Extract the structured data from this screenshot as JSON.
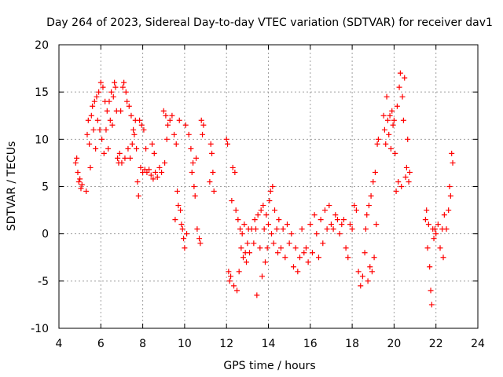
{
  "chart_data": {
    "type": "scatter",
    "title": "Day 264 of 2023, Sidereal Day-to-day VTEC variation (SDTVAR) for receiver dav1",
    "xlabel": "GPS time / hours",
    "ylabel": "SDTVAR / TECUs",
    "xlim": [
      4,
      24
    ],
    "ylim": [
      -10,
      20
    ],
    "xticks": [
      4,
      6,
      8,
      10,
      12,
      14,
      16,
      18,
      20,
      22,
      24
    ],
    "yticks": [
      -10,
      -5,
      0,
      5,
      10,
      15,
      20
    ],
    "xtick_labels": [
      "4",
      "6",
      "8",
      "10",
      "12",
      "14",
      "16",
      "18",
      "20",
      "22",
      "24"
    ],
    "ytick_labels": [
      "-10",
      "-5",
      "0",
      "5",
      "10",
      "15",
      "20"
    ],
    "grid": true,
    "legend": "none",
    "marker": "+",
    "color": "#ff0000",
    "series": [
      {
        "name": "dav1",
        "points": [
          [
            4.8,
            7.5
          ],
          [
            4.85,
            8.0
          ],
          [
            4.9,
            6.5
          ],
          [
            4.95,
            5.5
          ],
          [
            5.0,
            5.8
          ],
          [
            5.05,
            4.8
          ],
          [
            5.1,
            5.2
          ],
          [
            5.3,
            4.5
          ],
          [
            5.35,
            10.5
          ],
          [
            5.4,
            12.0
          ],
          [
            5.45,
            9.5
          ],
          [
            5.5,
            7.0
          ],
          [
            5.55,
            12.5
          ],
          [
            5.6,
            13.5
          ],
          [
            5.65,
            11.0
          ],
          [
            5.7,
            14.0
          ],
          [
            5.75,
            9.0
          ],
          [
            5.8,
            14.5
          ],
          [
            5.85,
            12.0
          ],
          [
            5.9,
            15.0
          ],
          [
            5.95,
            11.0
          ],
          [
            6.0,
            16.0
          ],
          [
            6.05,
            10.0
          ],
          [
            6.1,
            15.5
          ],
          [
            6.15,
            8.5
          ],
          [
            6.2,
            14.0
          ],
          [
            6.25,
            11.0
          ],
          [
            6.3,
            13.0
          ],
          [
            6.35,
            9.0
          ],
          [
            6.4,
            14.0
          ],
          [
            6.45,
            12.0
          ],
          [
            6.5,
            15.0
          ],
          [
            6.55,
            11.5
          ],
          [
            6.6,
            14.5
          ],
          [
            6.65,
            16.0
          ],
          [
            6.7,
            15.5
          ],
          [
            6.75,
            13.0
          ],
          [
            6.8,
            8.0
          ],
          [
            6.85,
            7.5
          ],
          [
            6.9,
            8.5
          ],
          [
            6.95,
            13.0
          ],
          [
            7.0,
            7.5
          ],
          [
            7.05,
            15.5
          ],
          [
            7.1,
            16.0
          ],
          [
            7.15,
            8.0
          ],
          [
            7.2,
            15.0
          ],
          [
            7.25,
            14.0
          ],
          [
            7.3,
            9.0
          ],
          [
            7.35,
            13.5
          ],
          [
            7.4,
            8.0
          ],
          [
            7.45,
            12.5
          ],
          [
            7.5,
            9.5
          ],
          [
            7.55,
            11.0
          ],
          [
            7.6,
            10.5
          ],
          [
            7.65,
            12.0
          ],
          [
            7.7,
            9.0
          ],
          [
            7.75,
            5.5
          ],
          [
            7.8,
            4.0
          ],
          [
            7.85,
            12.0
          ],
          [
            7.9,
            7.0
          ],
          [
            7.95,
            11.5
          ],
          [
            8.0,
            6.5
          ],
          [
            8.05,
            11.0
          ],
          [
            8.1,
            6.8
          ],
          [
            8.15,
            9.0
          ],
          [
            8.2,
            6.5
          ],
          [
            8.3,
            6.8
          ],
          [
            8.4,
            6.2
          ],
          [
            8.45,
            9.5
          ],
          [
            8.5,
            5.8
          ],
          [
            8.55,
            8.5
          ],
          [
            8.6,
            6.5
          ],
          [
            8.7,
            6.0
          ],
          [
            8.8,
            7.0
          ],
          [
            8.9,
            6.5
          ],
          [
            9.0,
            13.0
          ],
          [
            9.05,
            7.5
          ],
          [
            9.1,
            12.5
          ],
          [
            9.15,
            10.0
          ],
          [
            9.2,
            11.5
          ],
          [
            9.3,
            12.0
          ],
          [
            9.4,
            12.5
          ],
          [
            9.5,
            10.5
          ],
          [
            9.55,
            1.5
          ],
          [
            9.6,
            9.5
          ],
          [
            9.65,
            4.5
          ],
          [
            9.7,
            3.0
          ],
          [
            9.75,
            12.0
          ],
          [
            9.8,
            2.5
          ],
          [
            9.85,
            1.0
          ],
          [
            9.9,
            0.5
          ],
          [
            9.95,
            -0.5
          ],
          [
            10.0,
            -1.5
          ],
          [
            10.05,
            11.5
          ],
          [
            10.1,
            0.0
          ],
          [
            10.2,
            10.5
          ],
          [
            10.3,
            9.0
          ],
          [
            10.35,
            6.5
          ],
          [
            10.4,
            7.5
          ],
          [
            10.45,
            5.0
          ],
          [
            10.5,
            4.0
          ],
          [
            10.55,
            8.0
          ],
          [
            10.6,
            0.5
          ],
          [
            10.7,
            -0.5
          ],
          [
            10.75,
            -1.0
          ],
          [
            10.8,
            12.0
          ],
          [
            10.85,
            10.5
          ],
          [
            10.9,
            11.5
          ],
          [
            11.2,
            5.5
          ],
          [
            11.25,
            9.5
          ],
          [
            11.3,
            8.5
          ],
          [
            11.35,
            6.5
          ],
          [
            11.4,
            4.5
          ],
          [
            12.0,
            10.0
          ],
          [
            12.05,
            9.5
          ],
          [
            12.1,
            -4.0
          ],
          [
            12.15,
            -5.0
          ],
          [
            12.2,
            -4.5
          ],
          [
            12.25,
            3.5
          ],
          [
            12.3,
            7.0
          ],
          [
            12.35,
            -5.5
          ],
          [
            12.4,
            6.5
          ],
          [
            12.45,
            2.5
          ],
          [
            12.5,
            -6.0
          ],
          [
            12.55,
            1.5
          ],
          [
            12.6,
            -4.0
          ],
          [
            12.65,
            0.5
          ],
          [
            12.7,
            -1.5
          ],
          [
            12.75,
            0.0
          ],
          [
            12.8,
            -2.5
          ],
          [
            12.85,
            1.0
          ],
          [
            12.9,
            -2.0
          ],
          [
            12.95,
            -3.0
          ],
          [
            13.0,
            -1.0
          ],
          [
            13.05,
            0.5
          ],
          [
            13.1,
            -2.0
          ],
          [
            13.2,
            0.5
          ],
          [
            13.3,
            -1.0
          ],
          [
            13.35,
            1.5
          ],
          [
            13.4,
            0.5
          ],
          [
            13.45,
            -6.5
          ],
          [
            13.5,
            2.0
          ],
          [
            13.6,
            -1.5
          ],
          [
            13.65,
            2.5
          ],
          [
            13.7,
            -4.5
          ],
          [
            13.75,
            3.0
          ],
          [
            13.8,
            0.5
          ],
          [
            13.85,
            -3.0
          ],
          [
            13.9,
            2.0
          ],
          [
            13.95,
            -1.5
          ],
          [
            14.0,
            1.0
          ],
          [
            14.05,
            3.5
          ],
          [
            14.1,
            4.5
          ],
          [
            14.15,
            0.0
          ],
          [
            14.2,
            5.0
          ],
          [
            14.25,
            -1.0
          ],
          [
            14.3,
            2.5
          ],
          [
            14.4,
            0.5
          ],
          [
            14.45,
            -2.0
          ],
          [
            14.5,
            1.5
          ],
          [
            14.6,
            -1.5
          ],
          [
            14.7,
            0.5
          ],
          [
            14.8,
            -2.5
          ],
          [
            14.9,
            1.0
          ],
          [
            15.0,
            -1.0
          ],
          [
            15.1,
            0.0
          ],
          [
            15.2,
            -3.5
          ],
          [
            15.3,
            -1.5
          ],
          [
            15.4,
            -4.0
          ],
          [
            15.5,
            -2.5
          ],
          [
            15.6,
            0.5
          ],
          [
            15.7,
            -2.0
          ],
          [
            15.8,
            -1.5
          ],
          [
            15.9,
            -3.0
          ],
          [
            16.0,
            1.0
          ],
          [
            16.1,
            -2.0
          ],
          [
            16.2,
            2.0
          ],
          [
            16.3,
            0.0
          ],
          [
            16.4,
            -2.5
          ],
          [
            16.5,
            1.5
          ],
          [
            16.6,
            -1.0
          ],
          [
            16.7,
            2.5
          ],
          [
            16.8,
            0.5
          ],
          [
            16.9,
            3.0
          ],
          [
            17.0,
            1.0
          ],
          [
            17.1,
            0.5
          ],
          [
            17.2,
            2.0
          ],
          [
            17.3,
            1.5
          ],
          [
            17.4,
            0.0
          ],
          [
            17.5,
            1.0
          ],
          [
            17.6,
            1.5
          ],
          [
            17.7,
            -1.5
          ],
          [
            17.8,
            -2.5
          ],
          [
            17.9,
            1.0
          ],
          [
            18.0,
            0.5
          ],
          [
            18.1,
            3.0
          ],
          [
            18.2,
            2.5
          ],
          [
            18.3,
            -4.0
          ],
          [
            18.4,
            -5.5
          ],
          [
            18.5,
            -4.5
          ],
          [
            18.6,
            -2.0
          ],
          [
            18.65,
            0.5
          ],
          [
            18.7,
            2.0
          ],
          [
            18.75,
            -5.0
          ],
          [
            18.8,
            3.0
          ],
          [
            18.85,
            -3.5
          ],
          [
            18.9,
            4.0
          ],
          [
            18.95,
            -4.0
          ],
          [
            19.0,
            5.5
          ],
          [
            19.05,
            -2.5
          ],
          [
            19.1,
            6.5
          ],
          [
            19.15,
            1.0
          ],
          [
            19.2,
            9.5
          ],
          [
            19.25,
            10.0
          ],
          [
            19.5,
            12.5
          ],
          [
            19.55,
            11.0
          ],
          [
            19.6,
            9.5
          ],
          [
            19.65,
            14.5
          ],
          [
            19.7,
            12.0
          ],
          [
            19.75,
            10.5
          ],
          [
            19.8,
            12.5
          ],
          [
            19.85,
            9.0
          ],
          [
            19.9,
            13.0
          ],
          [
            19.95,
            11.5
          ],
          [
            20.0,
            12.0
          ],
          [
            20.05,
            8.5
          ],
          [
            20.1,
            4.5
          ],
          [
            20.15,
            13.5
          ],
          [
            20.2,
            5.5
          ],
          [
            20.25,
            15.5
          ],
          [
            20.3,
            17.0
          ],
          [
            20.35,
            5.0
          ],
          [
            20.4,
            14.5
          ],
          [
            20.45,
            12.0
          ],
          [
            20.5,
            16.5
          ],
          [
            20.55,
            6.0
          ],
          [
            20.6,
            7.0
          ],
          [
            20.65,
            10.0
          ],
          [
            20.7,
            5.5
          ],
          [
            20.75,
            6.5
          ],
          [
            21.5,
            1.5
          ],
          [
            21.55,
            2.5
          ],
          [
            21.6,
            -1.5
          ],
          [
            21.65,
            1.0
          ],
          [
            21.7,
            -3.5
          ],
          [
            21.75,
            -6.0
          ],
          [
            21.8,
            -7.5
          ],
          [
            21.85,
            0.5
          ],
          [
            21.9,
            -0.5
          ],
          [
            21.95,
            0.5
          ],
          [
            22.0,
            0.0
          ],
          [
            22.1,
            1.0
          ],
          [
            22.2,
            -1.5
          ],
          [
            22.3,
            0.5
          ],
          [
            22.35,
            -2.5
          ],
          [
            22.4,
            2.0
          ],
          [
            22.5,
            0.5
          ],
          [
            22.6,
            2.5
          ],
          [
            22.65,
            5.0
          ],
          [
            22.7,
            4.0
          ],
          [
            22.75,
            8.5
          ],
          [
            22.8,
            7.5
          ]
        ]
      }
    ]
  }
}
